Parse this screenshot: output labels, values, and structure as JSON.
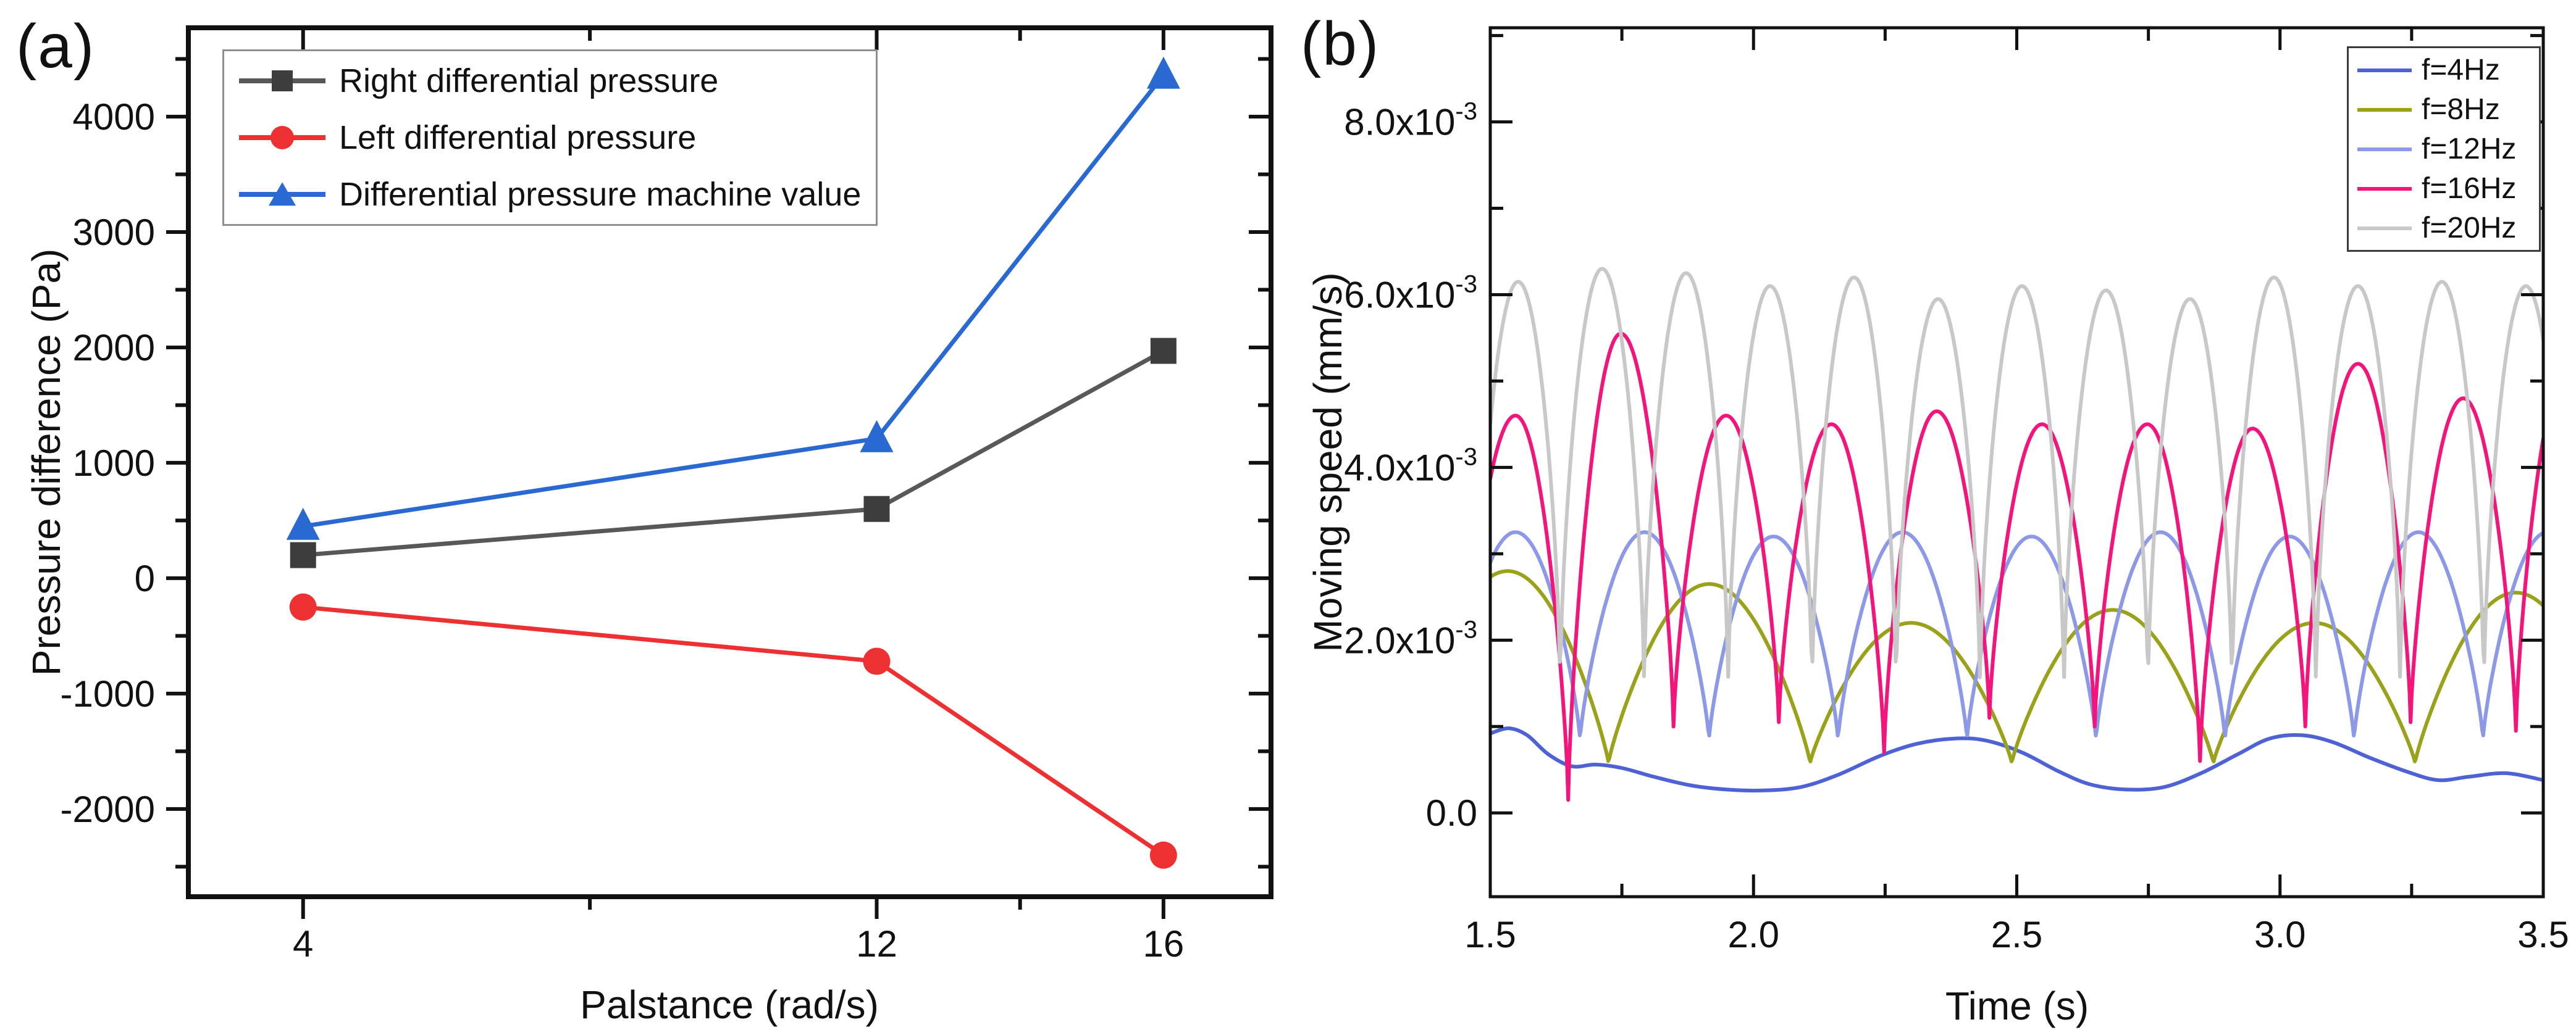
{
  "background": "#ffffff",
  "axis_color": "#111111",
  "panels": [
    {
      "label": "(a)"
    },
    {
      "label": "(b)"
    }
  ],
  "chart_data": [
    {
      "type": "line",
      "panel": "a",
      "title": "",
      "xlabel": "Palstance (rad/s)",
      "ylabel": "Pressure difference (Pa)",
      "xlim": [
        2.4,
        17.5
      ],
      "ylim": [
        -2760,
        4770
      ],
      "grid": false,
      "legend_position": "top-left",
      "x_ticks": {
        "major": [
          {
            "v": 4,
            "label": "4"
          },
          {
            "v": 12,
            "label": "12"
          },
          {
            "v": 16,
            "label": "16"
          }
        ],
        "minor": [
          8,
          14
        ]
      },
      "y_ticks": {
        "major": [
          {
            "v": -2000,
            "label": "-2000"
          },
          {
            "v": -1000,
            "label": "-1000"
          },
          {
            "v": 0,
            "label": "0"
          },
          {
            "v": 1000,
            "label": "1000"
          },
          {
            "v": 2000,
            "label": "2000"
          },
          {
            "v": 3000,
            "label": "3000"
          },
          {
            "v": 4000,
            "label": "4000"
          }
        ],
        "minor": [
          -2500,
          -1500,
          -500,
          500,
          1500,
          2500,
          3500,
          4500
        ]
      },
      "categories": [
        4,
        12,
        16
      ],
      "series": [
        {
          "name": "Right differential pressure",
          "marker": "square",
          "color": "#3d3d3d",
          "line_color": "#585858",
          "x": [
            4,
            12,
            16
          ],
          "values": [
            200,
            600,
            1970
          ]
        },
        {
          "name": "Left differential pressure",
          "marker": "circle",
          "color": "#ed3133",
          "line_color": "#ed3133",
          "x": [
            4,
            12,
            16
          ],
          "values": [
            -250,
            -720,
            -2400
          ]
        },
        {
          "name": "Differential pressure machine value",
          "marker": "triangle",
          "color": "#2a69d2",
          "line_color": "#2a69d2",
          "x": [
            4,
            12,
            16
          ],
          "values": [
            450,
            1210,
            4360
          ]
        }
      ]
    },
    {
      "type": "line",
      "panel": "b",
      "title": "",
      "xlabel": "Time (s)",
      "ylabel": "Moving speed (mm/s)",
      "xlim": [
        1.5,
        3.5
      ],
      "ylim": [
        -0.00097,
        0.00909
      ],
      "grid": false,
      "legend_position": "top-right",
      "x_ticks": {
        "major": [
          {
            "v": 1.5,
            "label": "1.5"
          },
          {
            "v": 2.0,
            "label": "2.0"
          },
          {
            "v": 2.5,
            "label": "2.5"
          },
          {
            "v": 3.0,
            "label": "3.0"
          },
          {
            "v": 3.5,
            "label": "3.5"
          }
        ],
        "minor": [
          1.75,
          2.25,
          2.75,
          3.25
        ]
      },
      "y_ticks": {
        "major": [
          {
            "v": 0,
            "label": "0.0"
          },
          {
            "v": 0.002,
            "label": "2.0x10^-3"
          },
          {
            "v": 0.004,
            "label": "4.0x10^-3"
          },
          {
            "v": 0.006,
            "label": "6.0x10^-3"
          },
          {
            "v": 0.008,
            "label": "8.0x10^-3"
          }
        ],
        "minor": [
          0.001,
          0.003,
          0.005,
          0.007,
          0.009
        ]
      },
      "series": [
        {
          "name": "f=4Hz",
          "color": "#4f62d5",
          "points": [
            [
              1.5,
              0.00092
            ],
            [
              1.535,
              0.00098
            ],
            [
              1.57,
              0.0009
            ],
            [
              1.61,
              0.00068
            ],
            [
              1.655,
              0.00054
            ],
            [
              1.7,
              0.00056
            ],
            [
              1.75,
              0.00052
            ],
            [
              1.81,
              0.00042
            ],
            [
              1.88,
              0.00032
            ],
            [
              1.95,
              0.00027
            ],
            [
              2.02,
              0.00026
            ],
            [
              2.09,
              0.0003
            ],
            [
              2.16,
              0.00044
            ],
            [
              2.24,
              0.00066
            ],
            [
              2.31,
              0.0008
            ],
            [
              2.38,
              0.00086
            ],
            [
              2.44,
              0.00084
            ],
            [
              2.51,
              0.0007
            ],
            [
              2.58,
              0.00048
            ],
            [
              2.64,
              0.00033
            ],
            [
              2.71,
              0.00027
            ],
            [
              2.78,
              0.0003
            ],
            [
              2.85,
              0.00046
            ],
            [
              2.92,
              0.00068
            ],
            [
              2.98,
              0.00086
            ],
            [
              3.04,
              0.0009
            ],
            [
              3.1,
              0.00082
            ],
            [
              3.17,
              0.00064
            ],
            [
              3.24,
              0.00048
            ],
            [
              3.3,
              0.00038
            ],
            [
              3.36,
              0.00042
            ],
            [
              3.43,
              0.00046
            ],
            [
              3.5,
              0.00038
            ]
          ]
        },
        {
          "name": "f=8Hz",
          "color": "#9aa21b",
          "humps": {
            "period": 0.383,
            "first_peak_t": 1.533,
            "peaks": [
              0.0028,
              0.00265,
              0.0022,
              0.00235,
              0.0022,
              0.00255
            ],
            "troughs": 0.00058,
            "shape": 0.85
          }
        },
        {
          "name": "f=12Hz",
          "color": "#8d98e6",
          "humps": {
            "period": 0.245,
            "first_peak_t": 1.548,
            "peaks": [
              0.00325,
              0.00325,
              0.0032,
              0.00325,
              0.0032,
              0.00325,
              0.0032,
              0.00325,
              0.00325
            ],
            "troughs": 0.00085,
            "shape": 0.78
          }
        },
        {
          "name": "f=16Hz",
          "color": "#f2157c",
          "humps": {
            "period": 0.2,
            "first_peak_t": 1.548,
            "peaks": [
              0.0046,
              0.00555,
              0.0046,
              0.0045,
              0.00465,
              0.0045,
              0.0045,
              0.00445,
              0.0052,
              0.0048,
              0.0052
            ],
            "troughs": [
              0.001,
              0.00015,
              0.001,
              0.00105,
              0.0007,
              0.0011,
              0.001,
              0.0006,
              0.001,
              0.00105,
              0.00095,
              0.001
            ],
            "shape": 0.72
          }
        },
        {
          "name": "f=20Hz",
          "color": "#c8c8c8",
          "humps": {
            "period": 0.1595,
            "first_peak_t": 1.553,
            "peaks": [
              0.00615,
              0.0063,
              0.00625,
              0.0061,
              0.0062,
              0.00595,
              0.0061,
              0.00605,
              0.00595,
              0.0062,
              0.0061,
              0.00615,
              0.0061
            ],
            "troughs": 0.0014,
            "shape": 0.62
          }
        }
      ]
    }
  ]
}
